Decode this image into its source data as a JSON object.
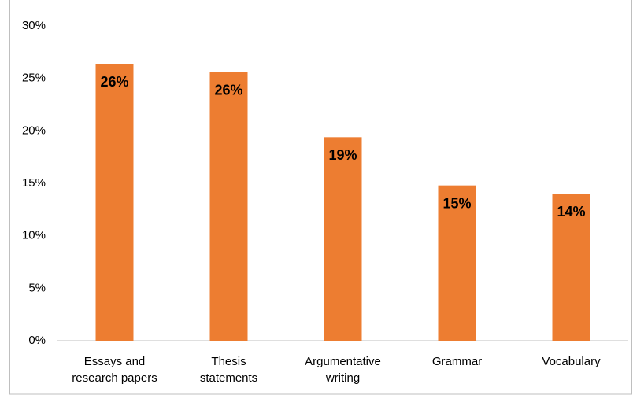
{
  "chart_data": {
    "type": "bar",
    "categories": [
      "Essays and research papers",
      "Thesis statements",
      "Argumentative writing",
      "Grammar",
      "Vocabulary"
    ],
    "values": [
      26.4,
      25.6,
      19.4,
      14.8,
      14.0
    ],
    "value_labels": [
      "26%",
      "26%",
      "19%",
      "15%",
      "14%"
    ],
    "color": "#ed7d31",
    "ylim": [
      0,
      30
    ],
    "yticks": [
      {
        "value": 0,
        "label": "0%"
      },
      {
        "value": 5,
        "label": "5%"
      },
      {
        "value": 10,
        "label": "10%"
      },
      {
        "value": 15,
        "label": "15%"
      },
      {
        "value": 20,
        "label": "20%"
      },
      {
        "value": 25,
        "label": "25%"
      },
      {
        "value": 30,
        "label": "30%"
      }
    ],
    "grid": false
  }
}
